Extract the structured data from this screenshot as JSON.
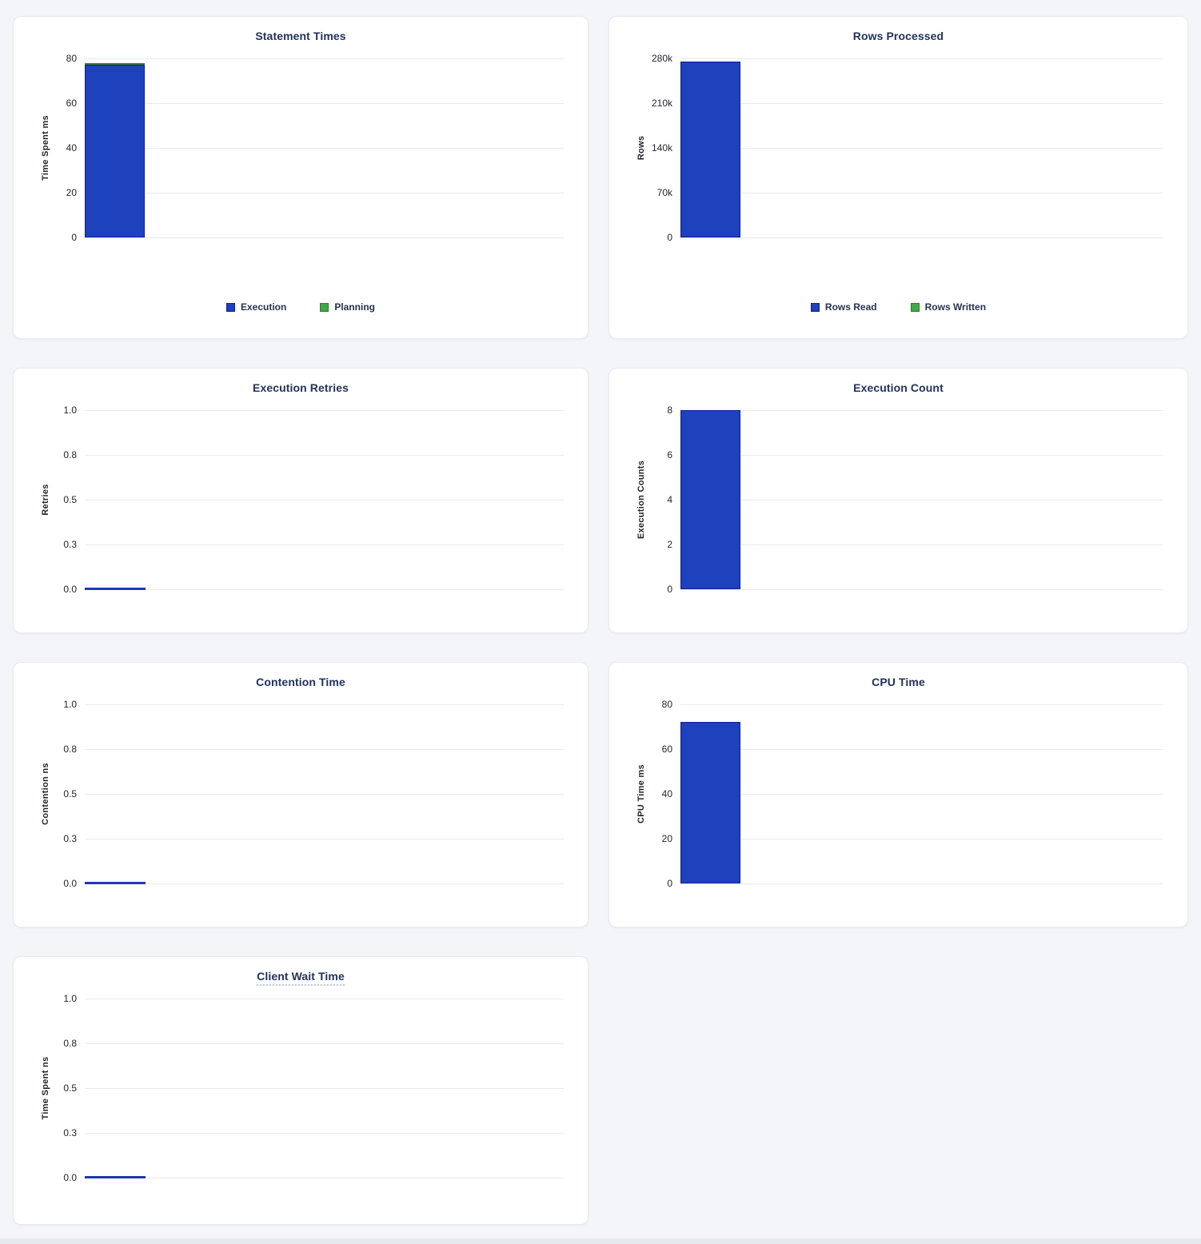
{
  "colors": {
    "background": "#f3f5f9",
    "panel_border": "#e7eaf0",
    "gridline": "#e9eaee",
    "title_text": "#22325b",
    "axis_text": "#23262d",
    "bar_blue": "#1e41bd",
    "bar_blue_border": "#141e96",
    "bar_green": "#42a846",
    "bar_green_border": "#2c7a32",
    "zero_line": "#1d3ab0"
  },
  "chart_data": [
    {
      "id": "statement-times",
      "type": "bar",
      "title": "Statement Times",
      "ylabel": "Time Spent ms",
      "ymax": 80,
      "ylim": [
        0,
        80
      ],
      "ytick_labels": [
        "80",
        "60",
        "40",
        "20",
        "0"
      ],
      "grid": true,
      "legend_position": "bottom",
      "series": [
        {
          "name": "Execution",
          "value": 77,
          "color": "#1e41bd",
          "border": "#141e96"
        },
        {
          "name": "Planning",
          "value": 1,
          "color": "#42a846",
          "border": "#2c7a32"
        }
      ],
      "legend": [
        {
          "label": "Execution",
          "color": "#1e41bd",
          "border": "#141e96"
        },
        {
          "label": "Planning",
          "color": "#42a846",
          "border": "#2c7a32"
        }
      ]
    },
    {
      "id": "rows-processed",
      "type": "bar",
      "title": "Rows Processed",
      "ylabel": "Rows",
      "ymax": 280000,
      "ylim": [
        0,
        280000
      ],
      "ytick_labels": [
        "280k",
        "210k",
        "140k",
        "70k",
        "0"
      ],
      "grid": true,
      "legend_position": "bottom",
      "series": [
        {
          "name": "Rows Read",
          "value": 275000,
          "color": "#1e41bd",
          "border": "#141e96"
        },
        {
          "name": "Rows Written",
          "value": 0,
          "color": "#42a846",
          "border": "#2c7a32"
        }
      ],
      "legend": [
        {
          "label": "Rows Read",
          "color": "#1e41bd",
          "border": "#141e96"
        },
        {
          "label": "Rows Written",
          "color": "#42a846",
          "border": "#2c7a32"
        }
      ]
    },
    {
      "id": "execution-retries",
      "type": "bar",
      "title": "Execution Retries",
      "ylabel": "Retries",
      "ymax": 1,
      "ylim": [
        0,
        1
      ],
      "ytick_labels": [
        "1.0",
        "0.8",
        "0.5",
        "0.3",
        "0.0"
      ],
      "grid": true,
      "legend_position": "none",
      "series": [
        {
          "name": "Retries",
          "value": 0,
          "color": "#1e41bd",
          "border": "#141e96"
        }
      ],
      "legend": null
    },
    {
      "id": "execution-count",
      "type": "bar",
      "title": "Execution Count",
      "ylabel": "Execution Counts",
      "ymax": 8,
      "ylim": [
        0,
        8
      ],
      "ytick_labels": [
        "8",
        "6",
        "4",
        "2",
        "0"
      ],
      "grid": true,
      "legend_position": "none",
      "series": [
        {
          "name": "Execution Count",
          "value": 8,
          "color": "#1e41bd",
          "border": "#141e96"
        }
      ],
      "legend": null
    },
    {
      "id": "contention-time",
      "type": "bar",
      "title": "Contention Time",
      "ylabel": "Contention ns",
      "ymax": 1,
      "ylim": [
        0,
        1
      ],
      "ytick_labels": [
        "1.0",
        "0.8",
        "0.5",
        "0.3",
        "0.0"
      ],
      "grid": true,
      "legend_position": "none",
      "series": [
        {
          "name": "Contention",
          "value": 0,
          "color": "#1e41bd",
          "border": "#141e96"
        }
      ],
      "legend": null
    },
    {
      "id": "cpu-time",
      "type": "bar",
      "title": "CPU Time",
      "ylabel": "CPU Time ms",
      "ymax": 80,
      "ylim": [
        0,
        80
      ],
      "ytick_labels": [
        "80",
        "60",
        "40",
        "20",
        "0"
      ],
      "grid": true,
      "legend_position": "none",
      "series": [
        {
          "name": "CPU Time",
          "value": 72,
          "color": "#1e41bd",
          "border": "#141e96"
        }
      ],
      "legend": null
    },
    {
      "id": "client-wait-time",
      "type": "bar",
      "title": "Client Wait Time",
      "title_has_tooltip": true,
      "ylabel": "Time Spent ns",
      "ymax": 1,
      "ylim": [
        0,
        1
      ],
      "ytick_labels": [
        "1.0",
        "0.8",
        "0.5",
        "0.3",
        "0.0"
      ],
      "grid": true,
      "legend_position": "none",
      "series": [
        {
          "name": "Client Wait",
          "value": 0,
          "color": "#1e41bd",
          "border": "#141e96"
        }
      ],
      "legend": null
    }
  ]
}
